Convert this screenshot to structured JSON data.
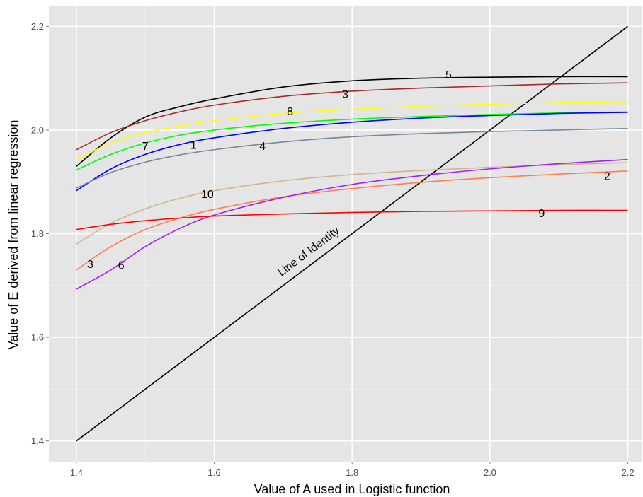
{
  "chart_data": {
    "type": "line",
    "title": "",
    "xlabel": "Value of A used in Logistic function",
    "ylabel": "Value of E derived from linear regression",
    "xlim": [
      1.36,
      2.22
    ],
    "ylim": [
      1.36,
      2.24
    ],
    "x_ticks": [
      1.4,
      1.6,
      1.8,
      2.0,
      2.2
    ],
    "y_ticks": [
      1.4,
      1.6,
      1.8,
      2.0,
      2.2
    ],
    "x_tick_labels": [
      "1.4",
      "1.6",
      "1.8",
      "2.0",
      "2.2"
    ],
    "y_tick_labels": [
      "1.4",
      "1.6",
      "1.8",
      "2.0",
      "2.2"
    ],
    "background": "#e5e5e5",
    "grid": true,
    "identity_line": {
      "label": "Line of Identity",
      "color": "#000000",
      "x": [
        1.4,
        2.2
      ],
      "y": [
        1.4,
        2.2
      ],
      "label_at": {
        "x": 1.74,
        "y": 1.76
      }
    },
    "series": [
      {
        "name": "5",
        "color": "#000000",
        "x": [
          1.4,
          1.45,
          1.5,
          1.55,
          1.6,
          1.7,
          1.8,
          1.9,
          2.0,
          2.1,
          2.2
        ],
        "y": [
          1.93,
          1.985,
          2.025,
          2.045,
          2.06,
          2.083,
          2.095,
          2.1,
          2.102,
          2.103,
          2.103
        ],
        "label_at": {
          "x": 1.94,
          "y": 2.108
        }
      },
      {
        "name": "3",
        "color": "#a52a2a",
        "x": [
          1.4,
          1.45,
          1.5,
          1.55,
          1.6,
          1.7,
          1.8,
          1.9,
          2.0,
          2.1,
          2.2
        ],
        "y": [
          1.962,
          1.995,
          2.018,
          2.035,
          2.048,
          2.065,
          2.075,
          2.081,
          2.085,
          2.089,
          2.091
        ],
        "label_at": {
          "x": 1.79,
          "y": 2.07
        }
      },
      {
        "name": "8",
        "color": "#ffff00",
        "x": [
          1.4,
          1.45,
          1.5,
          1.55,
          1.6,
          1.7,
          1.8,
          1.9,
          2.0,
          2.1,
          2.2
        ],
        "y": [
          1.942,
          1.975,
          1.995,
          2.008,
          2.018,
          2.032,
          2.04,
          2.046,
          2.05,
          2.053,
          2.055
        ],
        "label_at": {
          "x": 1.71,
          "y": 2.037
        }
      },
      {
        "name": "7",
        "color": "#00ff00",
        "x": [
          1.4,
          1.45,
          1.5,
          1.55,
          1.6,
          1.7,
          1.8,
          1.9,
          2.0,
          2.1,
          2.2
        ],
        "y": [
          1.923,
          1.953,
          1.975,
          1.99,
          2.0,
          2.013,
          2.021,
          2.026,
          2.03,
          2.033,
          2.035
        ],
        "label_at": {
          "x": 1.5,
          "y": 1.97
        }
      },
      {
        "name": "1",
        "color": "#0000ff",
        "x": [
          1.4,
          1.45,
          1.5,
          1.55,
          1.6,
          1.7,
          1.8,
          1.9,
          2.0,
          2.1,
          2.2
        ],
        "y": [
          1.883,
          1.925,
          1.953,
          1.972,
          1.985,
          2.003,
          2.015,
          2.023,
          2.028,
          2.032,
          2.034
        ],
        "label_at": {
          "x": 1.57,
          "y": 1.972
        }
      },
      {
        "name": "4",
        "color": "#778899",
        "x": [
          1.4,
          1.45,
          1.5,
          1.55,
          1.6,
          1.7,
          1.8,
          1.9,
          2.0,
          2.1,
          2.2
        ],
        "y": [
          1.888,
          1.918,
          1.938,
          1.952,
          1.962,
          1.977,
          1.987,
          1.993,
          1.997,
          2.0,
          2.003
        ],
        "label_at": {
          "x": 1.67,
          "y": 1.97
        }
      },
      {
        "name": "10",
        "color": "#d2b48c",
        "x": [
          1.4,
          1.45,
          1.5,
          1.55,
          1.6,
          1.7,
          1.8,
          1.9,
          2.0,
          2.1,
          2.2
        ],
        "y": [
          1.78,
          1.82,
          1.848,
          1.868,
          1.883,
          1.902,
          1.914,
          1.922,
          1.928,
          1.933,
          1.937
        ],
        "label_at": {
          "x": 1.59,
          "y": 1.877
        }
      },
      {
        "name": "2",
        "color": "#ff7f50",
        "x": [
          1.4,
          1.45,
          1.5,
          1.55,
          1.6,
          1.7,
          1.8,
          1.9,
          2.0,
          2.1,
          2.2
        ],
        "y": [
          1.73,
          1.775,
          1.808,
          1.83,
          1.847,
          1.871,
          1.887,
          1.899,
          1.908,
          1.915,
          1.921
        ],
        "label_at": {
          "x": 2.17,
          "y": 1.912
        }
      },
      {
        "name": "6",
        "color": "#a020f0",
        "x": [
          1.4,
          1.45,
          1.5,
          1.55,
          1.6,
          1.7,
          1.8,
          1.9,
          2.0,
          2.1,
          2.2
        ],
        "y": [
          1.693,
          1.73,
          1.775,
          1.81,
          1.836,
          1.87,
          1.895,
          1.912,
          1.925,
          1.935,
          1.943
        ],
        "label_at": {
          "x": 1.465,
          "y": 1.74
        }
      },
      {
        "name": "9",
        "color": "#ff0000",
        "x": [
          1.4,
          1.45,
          1.5,
          1.55,
          1.6,
          1.7,
          1.8,
          1.9,
          2.0,
          2.1,
          2.2
        ],
        "y": [
          1.808,
          1.818,
          1.825,
          1.83,
          1.834,
          1.838,
          1.841,
          1.843,
          1.844,
          1.845,
          1.845
        ],
        "label_at": {
          "x": 2.075,
          "y": 1.84
        }
      }
    ],
    "extra_labels": [
      {
        "text": "3",
        "x": 1.42,
        "y": 1.742
      }
    ]
  }
}
